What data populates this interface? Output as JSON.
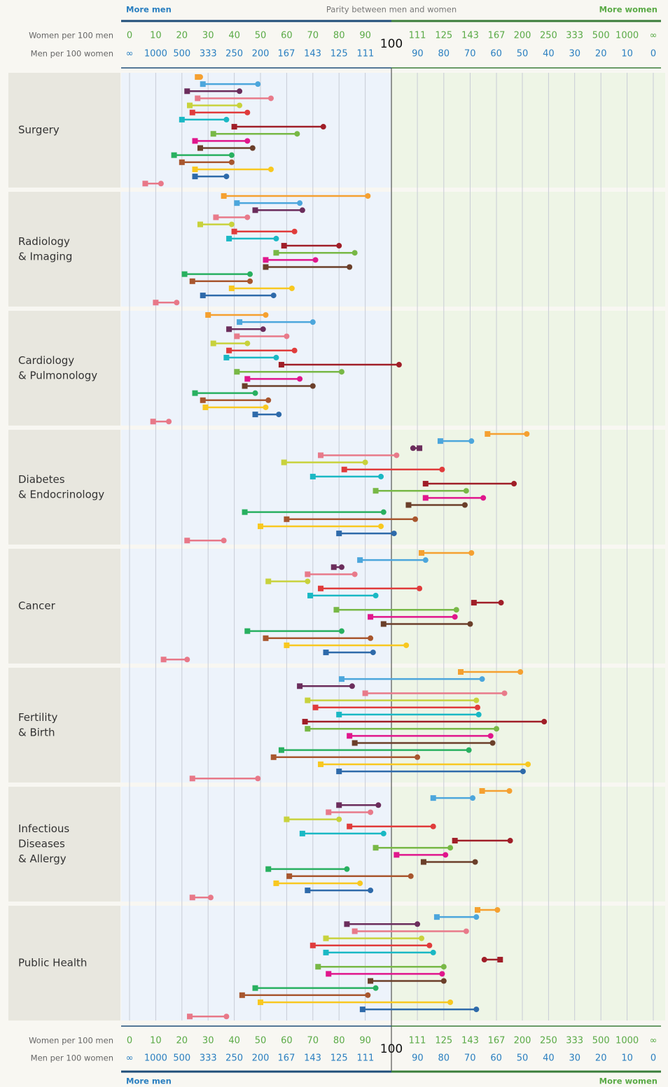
{
  "chart_data": {
    "type": "dumbbell",
    "left_note": "More men",
    "center_note": "Parity between men and women",
    "right_note": "More women",
    "x_label": "Women per 100 men",
    "x2_label": "Men per 100 women",
    "scale": "parity",
    "parity": 100,
    "xticks": [
      0,
      10,
      20,
      30,
      40,
      50,
      60,
      70,
      80,
      90,
      111,
      125,
      143,
      167,
      200,
      250,
      333,
      500,
      1000,
      {
        "value": null,
        "label": "∞"
      }
    ],
    "x2ticks": [
      {
        "value": null,
        "label": "∞"
      },
      1000,
      500,
      333,
      250,
      200,
      167,
      143,
      125,
      111,
      90,
      80,
      70,
      60,
      50,
      40,
      30,
      20,
      10,
      0
    ],
    "grid": true,
    "colors": [
      "#f5a030",
      "#4ca6dc",
      "#6b2d5c",
      "#e87a8a",
      "#c8d23c",
      "#e03c3c",
      "#1ab8c4",
      "#a01e28",
      "#78b846",
      "#e0168c",
      "#6b3f2a",
      "#28b060",
      "#a8562e",
      "#f8c820",
      "#2e6aaa",
      "#e87888"
    ],
    "panels": [
      {
        "title": [
          "Surgery"
        ],
        "values": [
          [
            26,
            27
          ],
          [
            28,
            49
          ],
          [
            22,
            42
          ],
          [
            26,
            54
          ],
          [
            23,
            42
          ],
          [
            24,
            45
          ],
          [
            20,
            37
          ],
          [
            40,
            74
          ],
          [
            32,
            64
          ],
          [
            25,
            45
          ],
          [
            27,
            47
          ],
          [
            17,
            39
          ],
          [
            20,
            39
          ],
          [
            25,
            54
          ],
          [
            25,
            37
          ],
          [
            6,
            12
          ]
        ]
      },
      {
        "title": [
          "Radiology",
          "& Imaging"
        ],
        "values": [
          [
            36,
            91
          ],
          [
            41,
            65
          ],
          [
            48,
            66
          ],
          [
            33,
            45
          ],
          [
            27,
            39
          ],
          [
            40,
            63
          ],
          [
            38,
            56
          ],
          [
            59,
            80
          ],
          [
            56,
            86
          ],
          [
            52,
            71
          ],
          [
            52,
            84
          ],
          [
            21,
            46
          ],
          [
            24,
            46
          ],
          [
            39,
            62
          ],
          [
            28,
            55
          ],
          [
            10,
            18
          ]
        ]
      },
      {
        "title": [
          "Cardiology",
          "& Pulmonology"
        ],
        "values": [
          [
            30,
            52
          ],
          [
            42,
            70
          ],
          [
            38,
            51
          ],
          [
            41,
            60
          ],
          [
            32,
            45
          ],
          [
            38,
            63
          ],
          [
            37,
            56
          ],
          [
            58,
            103
          ],
          [
            41,
            81
          ],
          [
            45,
            65
          ],
          [
            44,
            70
          ],
          [
            25,
            48
          ],
          [
            28,
            53
          ],
          [
            29,
            52
          ],
          [
            48,
            57
          ],
          [
            9,
            15
          ]
        ]
      },
      {
        "title": [
          "Diabetes",
          "& Endocrinology"
        ],
        "values": [
          [
            158,
            207
          ],
          [
            123,
            144
          ],
          [
            112,
            109
          ],
          [
            73,
            102
          ],
          [
            59,
            90
          ],
          [
            82,
            124
          ],
          [
            70,
            96
          ],
          [
            115,
            188
          ],
          [
            94,
            140
          ],
          [
            115,
            154
          ],
          [
            107,
            139
          ],
          [
            44,
            97
          ],
          [
            60,
            110
          ],
          [
            50,
            96
          ],
          [
            80,
            101
          ],
          [
            22,
            36
          ]
        ]
      },
      {
        "title": [
          "Cancer"
        ],
        "values": [
          [
            113,
            144
          ],
          [
            88,
            115
          ],
          [
            78,
            81
          ],
          [
            68,
            86
          ],
          [
            53,
            68
          ],
          [
            73,
            112
          ],
          [
            69,
            94
          ],
          [
            146,
            172
          ],
          [
            79,
            133
          ],
          [
            92,
            132
          ],
          [
            97,
            143
          ],
          [
            45,
            81
          ],
          [
            52,
            92
          ],
          [
            60,
            106
          ],
          [
            75,
            93
          ],
          [
            13,
            22
          ]
        ]
      },
      {
        "title": [
          "Fertility",
          "& Birth"
        ],
        "values": [
          [
            136,
            197
          ],
          [
            81,
            153
          ],
          [
            65,
            85
          ],
          [
            90,
            176
          ],
          [
            68,
            148
          ],
          [
            71,
            149
          ],
          [
            80,
            150
          ],
          [
            67,
            240
          ],
          [
            68,
            167
          ],
          [
            84,
            161
          ],
          [
            86,
            163
          ],
          [
            58,
            142
          ],
          [
            55,
            111
          ],
          [
            73,
            209
          ],
          [
            80,
            201
          ],
          [
            24,
            49
          ]
        ]
      },
      {
        "title": [
          "Infectious",
          "Diseases",
          "& Allergy"
        ],
        "values": [
          [
            153,
            182
          ],
          [
            119,
            145
          ],
          [
            80,
            95
          ],
          [
            76,
            92
          ],
          [
            60,
            80
          ],
          [
            84,
            119
          ],
          [
            66,
            97
          ],
          [
            132,
            183
          ],
          [
            94,
            129
          ],
          [
            102,
            126
          ],
          [
            114,
            147
          ],
          [
            53,
            83
          ],
          [
            61,
            108
          ],
          [
            56,
            88
          ],
          [
            68,
            92
          ],
          [
            24,
            31
          ]
        ]
      },
      {
        "title": [
          "Public Health"
        ],
        "values": [
          [
            149,
            168
          ],
          [
            121,
            148
          ],
          [
            83,
            111
          ],
          [
            86,
            140
          ],
          [
            75,
            113
          ],
          [
            70,
            117
          ],
          [
            75,
            119
          ],
          [
            171,
            155
          ],
          [
            72,
            125
          ],
          [
            76,
            124
          ],
          [
            92,
            125
          ],
          [
            48,
            94
          ],
          [
            43,
            91
          ],
          [
            50,
            129
          ],
          [
            89,
            148
          ],
          [
            23,
            37
          ]
        ]
      }
    ]
  }
}
